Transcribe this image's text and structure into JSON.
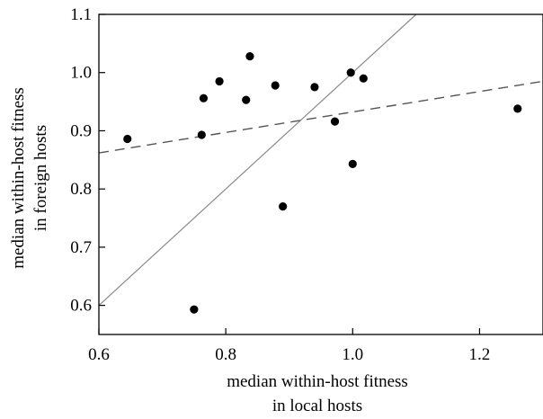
{
  "chart_data": {
    "type": "scatter",
    "xlabel": [
      "median within-host fitness",
      "in local hosts"
    ],
    "ylabel": [
      "median within-host fitness",
      "in foreign hosts"
    ],
    "xlim": [
      0.6,
      1.3
    ],
    "ylim": [
      0.55,
      1.1
    ],
    "x_ticks": [
      0.6,
      0.8,
      1.0,
      1.2
    ],
    "x_tick_labels": [
      "0.6",
      "0.8",
      "1.0",
      "1.2"
    ],
    "y_ticks": [
      0.6,
      0.7,
      0.8,
      0.9,
      1.0,
      1.1
    ],
    "y_tick_labels": [
      "0.6",
      "0.7",
      "0.8",
      "0.9",
      "1.0",
      "1.1"
    ],
    "grid": false,
    "points": [
      {
        "x": 0.645,
        "y": 0.886
      },
      {
        "x": 0.75,
        "y": 0.593
      },
      {
        "x": 0.762,
        "y": 0.893
      },
      {
        "x": 0.765,
        "y": 0.956
      },
      {
        "x": 0.79,
        "y": 0.985
      },
      {
        "x": 0.832,
        "y": 0.953
      },
      {
        "x": 0.838,
        "y": 1.028
      },
      {
        "x": 0.878,
        "y": 0.978
      },
      {
        "x": 0.89,
        "y": 0.77
      },
      {
        "x": 0.94,
        "y": 0.975
      },
      {
        "x": 0.972,
        "y": 0.916
      },
      {
        "x": 0.997,
        "y": 1.0
      },
      {
        "x": 1.0,
        "y": 0.843
      },
      {
        "x": 1.017,
        "y": 0.99
      },
      {
        "x": 1.26,
        "y": 0.938
      }
    ],
    "lines": [
      {
        "kind": "identity",
        "style": "solid",
        "color": "#8a8a8a",
        "x1": 0.6,
        "y1": 0.6,
        "x2": 1.1,
        "y2": 1.1
      },
      {
        "kind": "regression",
        "style": "dashed",
        "color": "#555555",
        "x1": 0.6,
        "y1": 0.862,
        "x2": 1.3,
        "y2": 0.985
      }
    ],
    "point_color": "#000000"
  }
}
